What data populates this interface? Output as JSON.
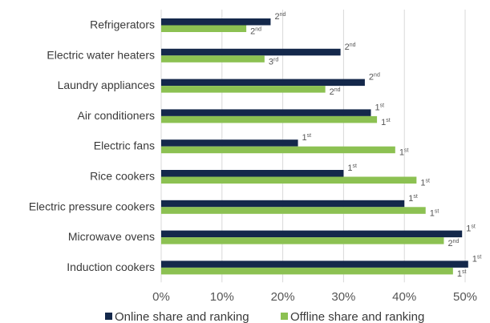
{
  "chart_data": {
    "type": "bar",
    "orientation": "horizontal",
    "categories": [
      "Refrigerators",
      "Electric water heaters",
      "Laundry appliances",
      "Air conditioners",
      "Electric fans",
      "Rice cookers",
      "Electric pressure cookers",
      "Microwave ovens",
      "Induction cookers"
    ],
    "series": [
      {
        "name": "Online share and ranking",
        "color": "#14284b",
        "values": [
          18,
          29.5,
          33.5,
          34.5,
          22.5,
          30,
          40,
          49.5,
          50.5
        ],
        "rank_num": [
          "2",
          "2",
          "2",
          "1",
          "1",
          "1",
          "1",
          "1",
          "1"
        ],
        "rank_suffix": [
          "nd",
          "nd",
          "nd",
          "st",
          "st",
          "st",
          "st",
          "st",
          "st"
        ]
      },
      {
        "name": "Offline share and ranking",
        "color": "#8cc152",
        "values": [
          14,
          17,
          27,
          35.5,
          38.5,
          42,
          43.5,
          46.5,
          48
        ],
        "rank_num": [
          "2",
          "3",
          "2",
          "1",
          "1",
          "1",
          "1",
          "2",
          "1"
        ],
        "rank_suffix": [
          "nd",
          "rd",
          "nd",
          "st",
          "st",
          "st",
          "st",
          "nd",
          "st"
        ]
      }
    ],
    "x_ticks": [
      "0%",
      "10%",
      "20%",
      "30%",
      "40%",
      "50%"
    ],
    "xlim": [
      0,
      50
    ],
    "grid": true,
    "legend_position": "bottom"
  }
}
